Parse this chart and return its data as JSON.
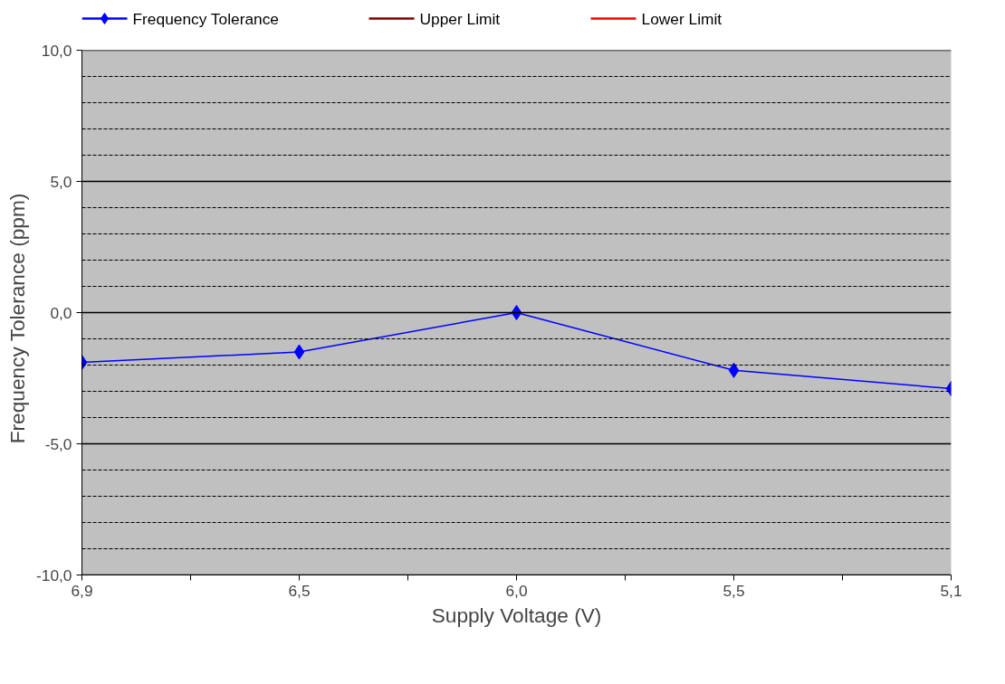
{
  "chart_data": {
    "type": "line",
    "xlabel": "Supply Voltage (V)",
    "ylabel": "Frequency  Tolerance  (ppm)",
    "categories": [
      "6,9",
      "6,5",
      "6,0",
      "5,5",
      "5,1"
    ],
    "series": [
      {
        "name": "Frequency Tolerance",
        "color": "#0000ff",
        "values": [
          -1.9,
          -1.5,
          0.0,
          -2.2,
          -2.9
        ],
        "marker": "diamond"
      },
      {
        "name": "Upper Limit",
        "color": "#800000",
        "values": [
          null,
          null,
          null,
          null,
          null
        ],
        "marker": "none"
      },
      {
        "name": "Lower Limit",
        "color": "#ff0000",
        "values": [
          null,
          null,
          null,
          null,
          null
        ],
        "marker": "none"
      }
    ],
    "ylim": [
      -10,
      10
    ],
    "yticks": [
      {
        "value": -10,
        "label": "-10,0"
      },
      {
        "value": -9,
        "label": null
      },
      {
        "value": -8,
        "label": null
      },
      {
        "value": -7,
        "label": null
      },
      {
        "value": -6,
        "label": null
      },
      {
        "value": -5,
        "label": "-5,0"
      },
      {
        "value": -4,
        "label": null
      },
      {
        "value": -3,
        "label": null
      },
      {
        "value": -2,
        "label": null
      },
      {
        "value": -1,
        "label": null
      },
      {
        "value": 0,
        "label": "0,0"
      },
      {
        "value": 1,
        "label": null
      },
      {
        "value": 2,
        "label": null
      },
      {
        "value": 3,
        "label": null
      },
      {
        "value": 4,
        "label": null
      },
      {
        "value": 5,
        "label": "5,0"
      },
      {
        "value": 6,
        "label": null
      },
      {
        "value": 7,
        "label": null
      },
      {
        "value": 8,
        "label": null
      },
      {
        "value": 9,
        "label": null
      },
      {
        "value": 10,
        "label": "10,0"
      }
    ],
    "grid": "y",
    "legend": "top",
    "line_style": "solid"
  }
}
